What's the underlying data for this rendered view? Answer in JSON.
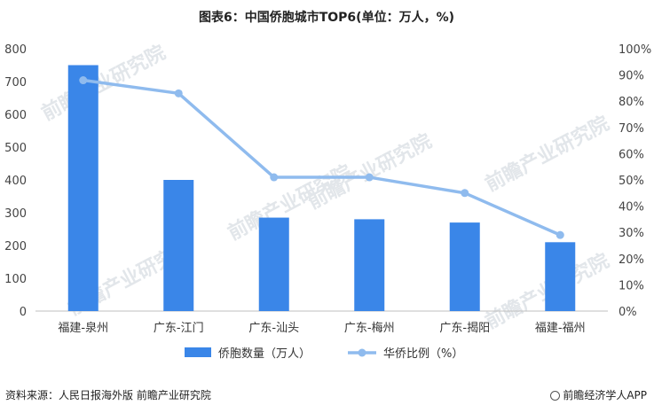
{
  "chart_data": {
    "type": "bar",
    "title": "图表6：中国侨胞城市TOP6(单位：万人，%)",
    "categories": [
      "福建-泉州",
      "广东-江门",
      "广东-汕头",
      "广东-梅州",
      "广东-揭阳",
      "福建-福州"
    ],
    "series": [
      {
        "name": "侨胞数量（万人）",
        "type": "bar",
        "axis": "left",
        "color": "#3a86e8",
        "values": [
          750,
          400,
          285,
          280,
          270,
          210
        ]
      },
      {
        "name": "华侨比例（%）",
        "type": "line",
        "axis": "right",
        "color": "#8fbbee",
        "values": [
          88,
          83,
          51,
          51,
          45,
          29
        ]
      }
    ],
    "y_left": {
      "ylim": [
        0,
        800
      ],
      "ticks": [
        "0",
        "100",
        "200",
        "300",
        "400",
        "500",
        "600",
        "700",
        "800"
      ]
    },
    "y_right": {
      "ylim": [
        0,
        100
      ],
      "ticks": [
        "0%",
        "10%",
        "20%",
        "30%",
        "40%",
        "50%",
        "60%",
        "70%",
        "80%",
        "90%",
        "100%"
      ]
    },
    "grid": false,
    "legend_position": "bottom"
  },
  "footer": {
    "source": "资料来源：人民日报海外版 前瞻产业研究院",
    "brand": "前瞻经济学人APP"
  },
  "watermark": "前瞻产业研究院"
}
